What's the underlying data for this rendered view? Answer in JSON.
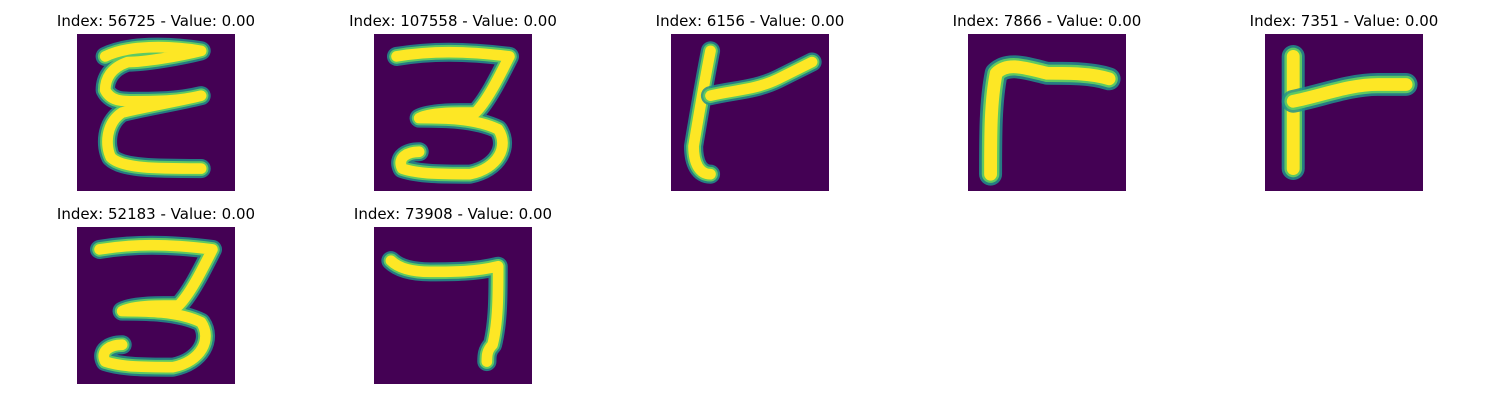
{
  "chart_data": {
    "type": "heatmap",
    "colormap": {
      "background": "#440154",
      "mid": "#21918c",
      "high": "#fde725",
      "accent": "#5ec962"
    },
    "panels": [
      {
        "title": "Index: 56725 - Value: 0.00",
        "glyph": "E"
      },
      {
        "title": "Index: 107558 - Value: 0.00",
        "glyph": "3"
      },
      {
        "title": "Index: 6156 - Value: 0.00",
        "glyph": "flag-thin"
      },
      {
        "title": "Index: 7866 - Value: 0.00",
        "glyph": "corner"
      },
      {
        "title": "Index: 7351 - Value: 0.00",
        "glyph": "flag-bold"
      },
      {
        "title": "Index: 52183 - Value: 0.00",
        "glyph": "3"
      },
      {
        "title": "Index: 73908 - Value: 0.00",
        "glyph": "7"
      }
    ]
  }
}
